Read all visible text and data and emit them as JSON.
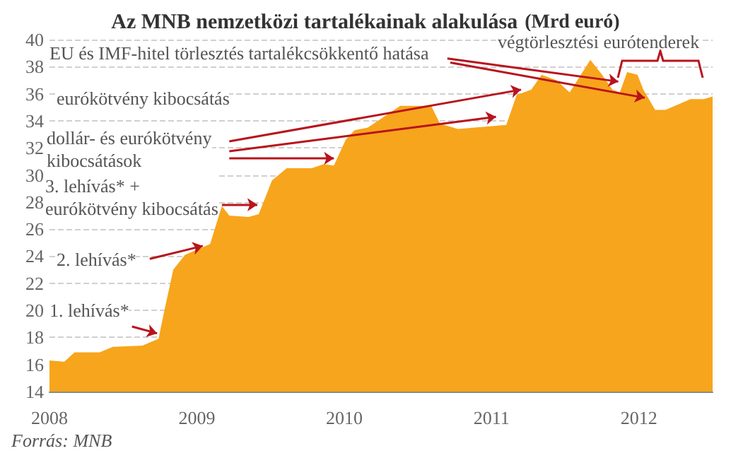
{
  "chart_data": {
    "type": "area",
    "title": "Az MNB nemzetközi tartalékainak alakulása",
    "subtitle": "(Mrd euró)",
    "x": [
      2008.0,
      2008.1,
      2008.17,
      2008.34,
      2008.43,
      2008.63,
      2008.74,
      2008.78,
      2008.84,
      2008.92,
      2009.09,
      2009.17,
      2009.22,
      2009.35,
      2009.42,
      2009.51,
      2009.61,
      2009.78,
      2009.86,
      2009.93,
      2010.01,
      2010.07,
      2010.16,
      2010.38,
      2010.59,
      2010.65,
      2010.77,
      2011.1,
      2011.17,
      2011.27,
      2011.34,
      2011.44,
      2011.53,
      2011.67,
      2011.75,
      2011.82,
      2011.87,
      2011.92,
      2011.99,
      2012.03,
      2012.11,
      2012.18,
      2012.35,
      2012.44,
      2012.5
    ],
    "values": [
      16.3,
      16.2,
      16.9,
      16.9,
      17.3,
      17.4,
      17.9,
      20.0,
      23.0,
      24.1,
      24.9,
      27.7,
      27.0,
      26.9,
      27.1,
      29.6,
      30.5,
      30.5,
      30.8,
      30.7,
      32.6,
      33.3,
      33.5,
      35.1,
      35.1,
      33.8,
      33.4,
      33.7,
      35.9,
      36.3,
      37.4,
      37.0,
      36.1,
      38.5,
      37.4,
      36.3,
      36.1,
      37.6,
      37.4,
      36.3,
      34.8,
      34.8,
      35.6,
      35.6,
      35.8
    ],
    "color": "#f7a51c",
    "xlim": [
      2008,
      2012.5
    ],
    "xticks": [
      2008,
      2009,
      2010,
      2011,
      2012
    ],
    "ylim": [
      14,
      40
    ],
    "yticks": [
      14,
      16,
      18,
      20,
      22,
      24,
      26,
      28,
      30,
      32,
      34,
      36,
      38,
      40
    ],
    "grid": "y",
    "annotations": [
      {
        "text": "EU és IMF-hitel törlesztés tartalékcsökkentő hatása",
        "x": 2011.86,
        "y": 36.9
      },
      "végtörlesztési eurótenderek",
      "eurókötvény kibocsátás",
      {
        "text": "dollár- és eurókötvény\nkibocsátások",
        "x": 2009.93,
        "y": 31.23
      },
      {
        "text": "3. lehívás* +\neurókötvény kibocsátás",
        "x": 2009.41,
        "y": 27.8
      },
      {
        "text": "2. lehívás*",
        "x": 2009.04,
        "y": 24.76
      },
      {
        "text": "1. lehívás*",
        "x": 2008.73,
        "y": 18.3
      },
      "Forrás: MNB"
    ]
  }
}
